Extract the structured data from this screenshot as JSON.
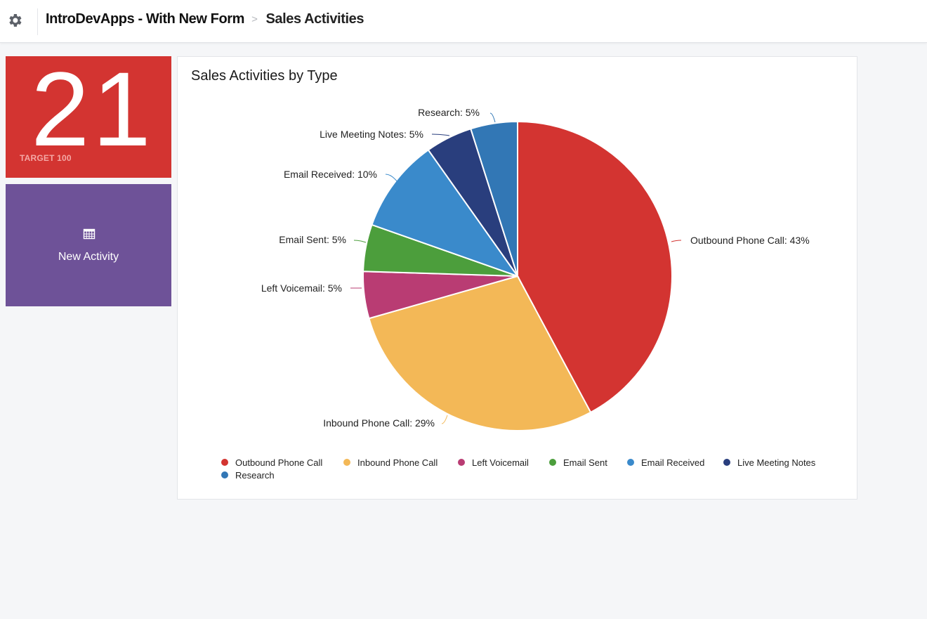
{
  "header": {
    "app_name": "IntroDevApps - With New Form",
    "page_title": "Sales Activities"
  },
  "kpi_tile": {
    "value": "21",
    "target_label": "TARGET 100",
    "color": "#d33431"
  },
  "action_tile": {
    "label": "New Activity",
    "icon": "calendar-grid-icon",
    "color": "#6e5298"
  },
  "chart": {
    "title": "Sales Activities by Type"
  },
  "chart_data": {
    "type": "pie",
    "title": "Sales Activities by Type",
    "slices": [
      {
        "name": "Outbound Phone Call",
        "percent": 43,
        "label": "Outbound Phone Call: 43%",
        "color": "#d33431"
      },
      {
        "name": "Inbound Phone Call",
        "percent": 29,
        "label": "Inbound Phone Call: 29%",
        "color": "#f3b857"
      },
      {
        "name": "Left Voicemail",
        "percent": 5,
        "label": "Left Voicemail: 5%",
        "color": "#b93c73"
      },
      {
        "name": "Email Sent",
        "percent": 5,
        "label": "Email Sent: 5%",
        "color": "#4c9e3c"
      },
      {
        "name": "Email Received",
        "percent": 10,
        "label": "Email Received: 10%",
        "color": "#3a8acb"
      },
      {
        "name": "Live Meeting Notes",
        "percent": 5,
        "label": "Live Meeting Notes: 5%",
        "color": "#293e7d"
      },
      {
        "name": "Research",
        "percent": 5,
        "label": "Research: 5%",
        "color": "#3277b5"
      }
    ],
    "legend": [
      "Outbound Phone Call",
      "Inbound Phone Call",
      "Left Voicemail",
      "Email Sent",
      "Email Received",
      "Live Meeting Notes",
      "Research"
    ],
    "legend_position": "bottom"
  }
}
